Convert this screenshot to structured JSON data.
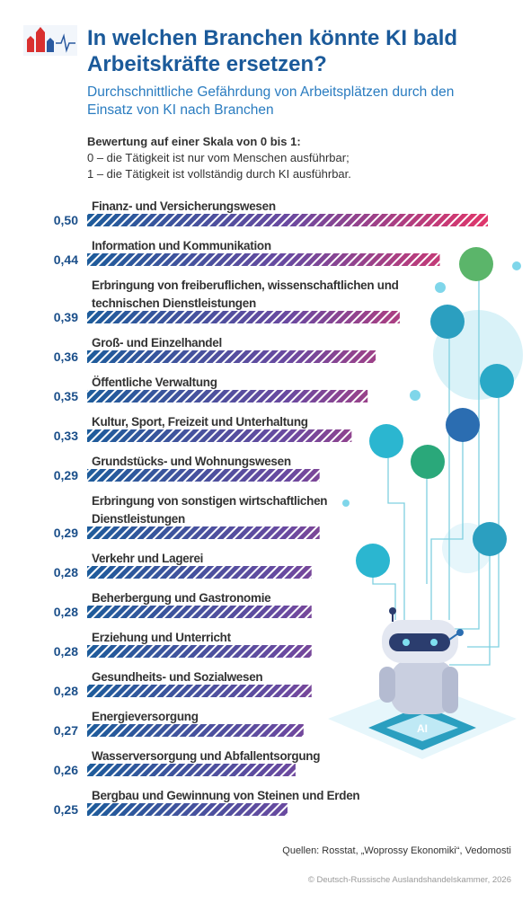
{
  "chart_data": {
    "type": "bar",
    "title": "In welchen Branchen könnte KI bald Arbeitskräfte ersetzen?",
    "subtitle": "Durchschnittliche Gefährdung von Arbeitsplätzen durch den Einsatz von KI nach Branchen",
    "note_title": "Bewertung auf einer Skala von 0 bis 1:",
    "note_lines": [
      "0 – die Tätigkeit ist nur vom Menschen ausführbar;",
      "1 – die Tätigkeit ist vollständig durch KI ausführbar."
    ],
    "categories": [
      "Finanz- und Versicherungswesen",
      "Information und Kommunikation",
      "Erbringung von freiberuflichen, wissenschaftlichen und technischen Dienstleistungen",
      "Groß- und Einzelhandel",
      "Öffentliche Verwaltung",
      "Kultur, Sport, Freizeit und Unterhaltung",
      "Grundstücks- und Wohnungswesen",
      "Erbringung von sonstigen wirtschaftlichen Dienstleistungen",
      "Verkehr und Lagerei",
      "Beherbergung und Gastronomie",
      "Erziehung und Unterricht",
      "Gesundheits- und Sozialwesen",
      "Energieversorgung",
      "Wasserversorgung und Abfallentsorgung",
      "Bergbau und Gewinnung von Steinen und Erden"
    ],
    "values": [
      0.5,
      0.44,
      0.39,
      0.36,
      0.35,
      0.33,
      0.29,
      0.29,
      0.28,
      0.28,
      0.28,
      0.28,
      0.27,
      0.26,
      0.25
    ],
    "value_labels": [
      "0,50",
      "0,44",
      "0,39",
      "0,36",
      "0,35",
      "0,33",
      "0,29",
      "0,29",
      "0,28",
      "0,28",
      "0,28",
      "0,28",
      "0,27",
      "0,26",
      "0,25"
    ],
    "colors": [
      "#1d5c9b",
      "#6a4aa0",
      "#e0366a"
    ],
    "source": "Quellen: Rosstat, „Woprossy Ekonomiki“, Vedomosti",
    "copyright": "© Deutsch-Russische Auslandshandelskammer, 2026"
  }
}
